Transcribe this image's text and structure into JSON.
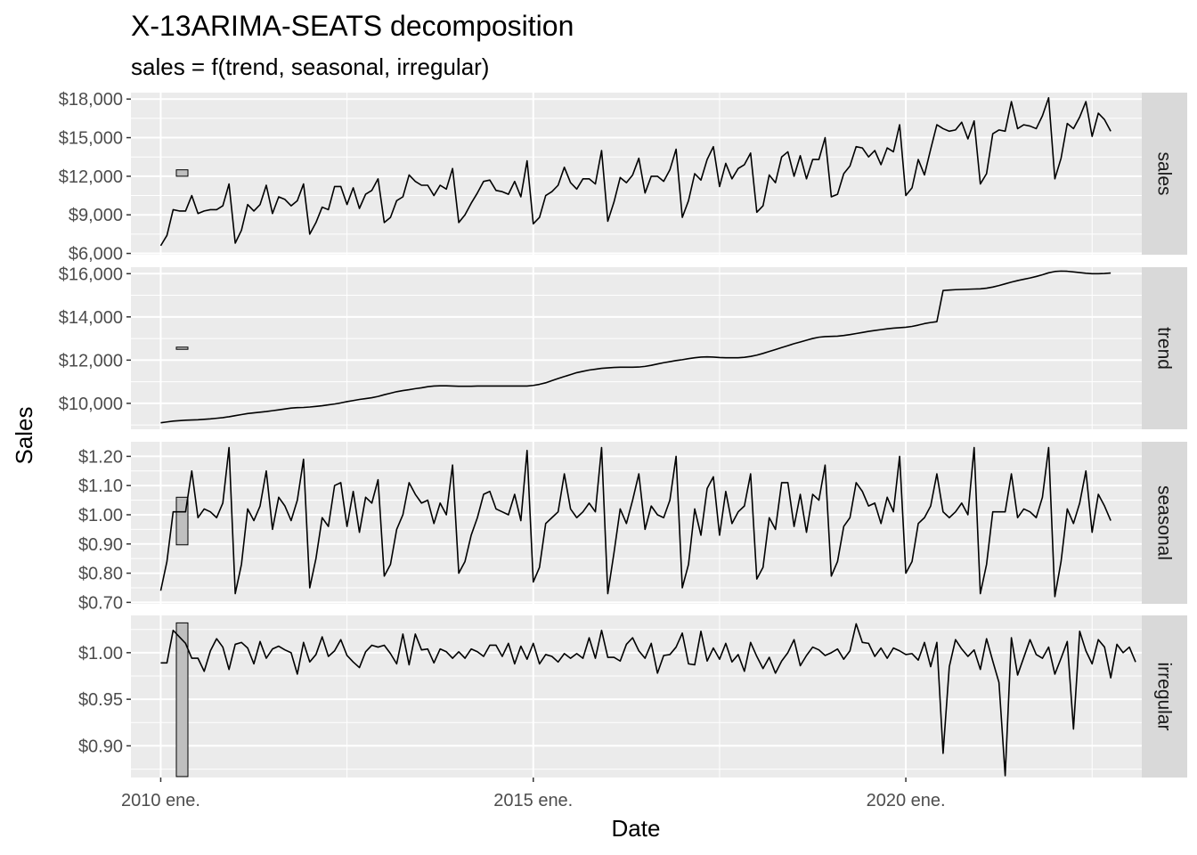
{
  "chart_data": {
    "type": "line",
    "title": "X-13ARIMA-SEATS decomposition",
    "subtitle": "sales = f(trend, seasonal, irregular)",
    "xlabel": "Date",
    "ylabel": "Sales",
    "x_start": "2010-01",
    "x_ticks": [
      {
        "date": "2010-01",
        "label": "2010 ene."
      },
      {
        "date": "2015-01",
        "label": "2015 ene."
      },
      {
        "date": "2020-01",
        "label": "2020 ene."
      }
    ],
    "grid": "on",
    "panels": [
      {
        "name": "sales",
        "ylim": [
          5900,
          18500
        ],
        "yticks": [
          6000,
          9000,
          12000,
          15000,
          18000
        ],
        "ytick_labels": [
          "$6,000",
          "$9,000",
          "$12,000",
          "$15,000",
          "$18,000"
        ],
        "scale_bar": [
          12000,
          12500
        ],
        "values": [
          6600,
          7400,
          9400,
          9300,
          9300,
          10500,
          9100,
          9300,
          9400,
          9400,
          9700,
          11400,
          6800,
          7800,
          9800,
          9300,
          9800,
          11300,
          9100,
          10400,
          10200,
          9700,
          10100,
          11400,
          7500,
          8400,
          9600,
          9400,
          11200,
          11200,
          9800,
          11100,
          9500,
          10600,
          10900,
          11800,
          8400,
          8800,
          10100,
          10400,
          12100,
          11600,
          11300,
          11300,
          10500,
          11300,
          11000,
          12600,
          8400,
          9000,
          9900,
          10700,
          11600,
          11700,
          10900,
          10800,
          10600,
          11600,
          10400,
          13200,
          8300,
          8800,
          10500,
          10800,
          11300,
          12700,
          11500,
          11000,
          11800,
          11800,
          11400,
          14000,
          8500,
          10000,
          11900,
          11500,
          12100,
          13400,
          10700,
          12000,
          12000,
          11600,
          12500,
          14100,
          8800,
          10100,
          12200,
          11700,
          13300,
          14300,
          11200,
          13000,
          11800,
          12600,
          12900,
          13800,
          9200,
          9700,
          12100,
          11500,
          13500,
          13900,
          12000,
          13600,
          11800,
          13300,
          13300,
          15000,
          10400,
          10600,
          12200,
          12800,
          14300,
          14200,
          13500,
          14000,
          12900,
          14200,
          13900,
          16000,
          10500,
          11100,
          13300,
          12100,
          14100,
          16000,
          15700,
          15500,
          15600,
          16200,
          14900,
          16300,
          11400,
          12200,
          15300,
          15600,
          15500,
          17800,
          15700,
          16000,
          15900,
          15700,
          16700,
          18100,
          11800,
          13400,
          16100,
          15700,
          16600,
          17800,
          15100,
          16900,
          16400,
          15500
        ]
      },
      {
        "name": "trend",
        "ylim": [
          8800,
          16300
        ],
        "yticks": [
          10000,
          12000,
          14000,
          16000
        ],
        "ytick_labels": [
          "$10,000",
          "$12,000",
          "$14,000",
          "$16,000"
        ],
        "scale_bar": [
          12500,
          12600
        ],
        "values": [
          9100,
          9140,
          9180,
          9200,
          9220,
          9230,
          9240,
          9260,
          9280,
          9310,
          9340,
          9380,
          9430,
          9480,
          9530,
          9560,
          9590,
          9620,
          9660,
          9700,
          9740,
          9780,
          9800,
          9810,
          9830,
          9860,
          9890,
          9930,
          9970,
          10020,
          10080,
          10130,
          10180,
          10220,
          10260,
          10320,
          10400,
          10470,
          10540,
          10590,
          10630,
          10680,
          10720,
          10770,
          10800,
          10810,
          10810,
          10800,
          10790,
          10790,
          10790,
          10800,
          10800,
          10800,
          10800,
          10800,
          10800,
          10800,
          10800,
          10800,
          10830,
          10880,
          10950,
          11050,
          11150,
          11240,
          11330,
          11420,
          11480,
          11540,
          11580,
          11620,
          11640,
          11660,
          11670,
          11670,
          11670,
          11680,
          11710,
          11760,
          11820,
          11880,
          11930,
          11980,
          12020,
          12070,
          12110,
          12140,
          12150,
          12140,
          12120,
          12110,
          12110,
          12110,
          12130,
          12170,
          12230,
          12310,
          12400,
          12490,
          12580,
          12670,
          12760,
          12840,
          12920,
          13000,
          13060,
          13090,
          13100,
          13110,
          13140,
          13180,
          13230,
          13280,
          13330,
          13370,
          13410,
          13450,
          13480,
          13500,
          13520,
          13560,
          13620,
          13690,
          13740,
          13780,
          15220,
          15240,
          15260,
          15270,
          15280,
          15290,
          15300,
          15330,
          15380,
          15450,
          15530,
          15610,
          15680,
          15740,
          15800,
          15870,
          15950,
          16040,
          16100,
          16120,
          16110,
          16080,
          16050,
          16020,
          16000,
          16000,
          16010,
          16030
        ]
      },
      {
        "name": "seasonal",
        "ylim": [
          0.695,
          1.25
        ],
        "yticks": [
          0.7,
          0.8,
          0.9,
          1.0,
          1.1,
          1.2
        ],
        "ytick_labels": [
          "$0.70",
          "$0.80",
          "$0.90",
          "$1.00",
          "$1.10",
          "$1.20"
        ],
        "scale_bar": [
          0.897,
          1.06
        ],
        "values": [
          0.74,
          0.84,
          1.01,
          1.01,
          1.01,
          1.15,
          0.99,
          1.02,
          1.01,
          0.99,
          1.04,
          1.23,
          0.73,
          0.83,
          1.02,
          0.98,
          1.03,
          1.15,
          0.95,
          1.06,
          1.03,
          0.98,
          1.05,
          1.19,
          0.75,
          0.85,
          0.99,
          0.96,
          1.1,
          1.11,
          0.96,
          1.08,
          0.94,
          1.06,
          1.04,
          1.12,
          0.79,
          0.83,
          0.95,
          1.0,
          1.11,
          1.07,
          1.04,
          1.05,
          0.97,
          1.04,
          1.0,
          1.17,
          0.8,
          0.84,
          0.93,
          0.99,
          1.07,
          1.08,
          1.02,
          1.01,
          1.0,
          1.07,
          0.98,
          1.22,
          0.77,
          0.82,
          0.97,
          0.99,
          1.01,
          1.14,
          1.02,
          0.99,
          1.01,
          1.04,
          1.01,
          1.23,
          0.73,
          0.87,
          1.02,
          0.97,
          1.05,
          1.14,
          0.95,
          1.03,
          1.0,
          0.99,
          1.05,
          1.2,
          0.75,
          0.83,
          1.02,
          0.93,
          1.09,
          1.13,
          0.93,
          1.08,
          0.97,
          1.01,
          1.03,
          1.14,
          0.78,
          0.82,
          0.99,
          0.95,
          1.11,
          1.11,
          0.96,
          1.07,
          0.94,
          1.07,
          1.05,
          1.17,
          0.79,
          0.84,
          0.96,
          0.99,
          1.11,
          1.08,
          1.03,
          1.04,
          0.97,
          1.06,
          1.01,
          1.2,
          0.8,
          0.84,
          0.97,
          0.99,
          1.03,
          1.14,
          1.01,
          0.99,
          1.01,
          1.04,
          1.0,
          1.23,
          0.73,
          0.83,
          1.01,
          1.01,
          1.01,
          1.14,
          0.99,
          1.02,
          1.01,
          0.99,
          1.06,
          1.23,
          0.72,
          0.84,
          1.02,
          0.97,
          1.04,
          1.15,
          0.94,
          1.07,
          1.03,
          0.98
        ]
      },
      {
        "name": "irregular",
        "ylim": [
          0.866,
          1.04
        ],
        "yticks": [
          0.9,
          0.95,
          1.0
        ],
        "ytick_labels": [
          "$0.90",
          "$0.95",
          "$1.00"
        ],
        "scale_bar": [
          0.867,
          1.032
        ],
        "values": [
          0.989,
          0.989,
          1.024,
          1.017,
          1.01,
          0.994,
          0.994,
          0.98,
          1.002,
          1.015,
          1.006,
          0.982,
          1.009,
          1.011,
          1.005,
          0.988,
          1.012,
          0.994,
          1.004,
          1.007,
          1.003,
          1.0,
          0.977,
          1.011,
          0.99,
          0.998,
          1.017,
          0.996,
          1.002,
          1.014,
          0.997,
          0.99,
          0.984,
          1.001,
          1.008,
          1.006,
          1.008,
          0.999,
          0.988,
          1.02,
          0.987,
          1.02,
          1.003,
          1.004,
          0.989,
          1.004,
          1.001,
          0.994,
          1.001,
          0.994,
          1.004,
          1.001,
          0.996,
          1.008,
          1.008,
          0.996,
          1.01,
          0.988,
          1.007,
          0.993,
          1.01,
          0.988,
          0.998,
          0.996,
          0.99,
          0.999,
          0.994,
          0.999,
          0.994,
          1.016,
          0.994,
          1.024,
          0.995,
          0.995,
          0.991,
          1.009,
          1.016,
          1.002,
          0.994,
          1.01,
          0.978,
          0.997,
          0.998,
          1.006,
          1.021,
          0.988,
          0.987,
          1.023,
          0.991,
          1.005,
          0.993,
          1.01,
          0.99,
          0.998,
          0.98,
          1.011,
          0.996,
          0.983,
          0.995,
          0.978,
          0.991,
          1.0,
          1.014,
          0.986,
          0.997,
          1.006,
          1.003,
          0.997,
          1.0,
          1.004,
          0.993,
          1.002,
          1.031,
          1.011,
          1.01,
          0.996,
          1.005,
          0.994,
          1.005,
          1.002,
          0.998,
          0.999,
          0.992,
          1.011,
          0.985,
          1.011,
          0.892,
          0.985,
          1.014,
          1.004,
          0.996,
          1.003,
          0.982,
          1.015,
          0.991,
          0.968,
          0.868,
          1.016,
          0.976,
          0.995,
          1.014,
          0.998,
          0.994,
          1.006,
          0.977,
          0.994,
          1.012,
          0.918,
          1.023,
          1.002,
          0.988,
          1.014,
          1.006,
          0.973,
          1.009,
          1.0,
          1.006,
          0.99
        ]
      }
    ]
  }
}
